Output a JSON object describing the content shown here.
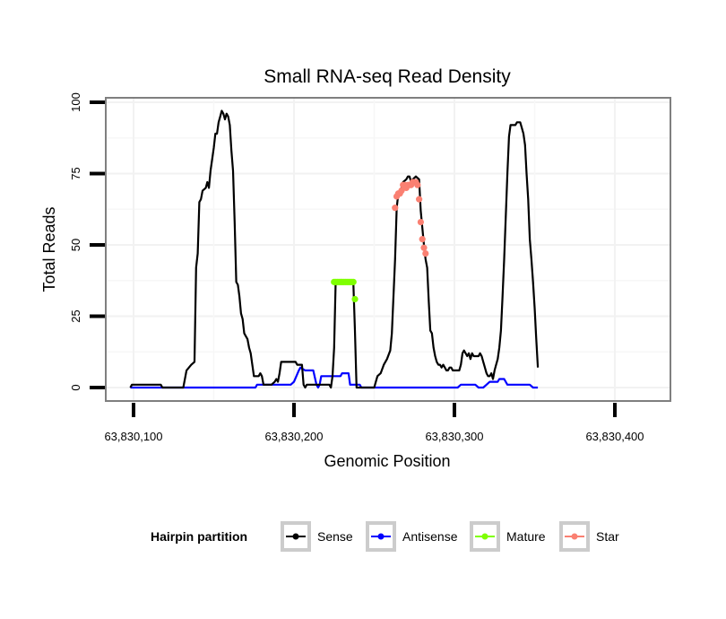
{
  "chart_data": {
    "type": "line",
    "title": "Small RNA-seq Read Density",
    "xlabel": "Genomic Position",
    "ylabel": "Total Reads",
    "x_offset_base": 63830000,
    "xlim": [
      63830082,
      63830435
    ],
    "ylim": [
      -5,
      105
    ],
    "x_ticks": [
      {
        "value": 63830100,
        "label": "63,830,100"
      },
      {
        "value": 63830200,
        "label": "63,830,200"
      },
      {
        "value": 63830300,
        "label": "63,830,300"
      },
      {
        "value": 63830400,
        "label": "63,830,400"
      }
    ],
    "y_ticks": [
      {
        "value": 0,
        "label": "0"
      },
      {
        "value": 25,
        "label": "25"
      },
      {
        "value": 50,
        "label": "50"
      },
      {
        "value": 75,
        "label": "75"
      },
      {
        "value": 100,
        "label": "100"
      }
    ],
    "grid": true,
    "legend": {
      "title": "Hairpin partition",
      "placement": "bottom"
    },
    "series": [
      {
        "name": "Sense",
        "color": "#000000",
        "kind": "line",
        "points": [
          [
            98,
            0
          ],
          [
            99,
            1
          ],
          [
            117,
            1
          ],
          [
            118,
            0
          ],
          [
            131,
            0
          ],
          [
            133,
            6
          ],
          [
            136,
            8
          ],
          [
            138,
            9
          ],
          [
            139,
            42
          ],
          [
            140,
            47
          ],
          [
            141,
            65
          ],
          [
            142,
            66
          ],
          [
            143,
            69
          ],
          [
            145,
            70
          ],
          [
            146,
            72
          ],
          [
            147,
            70
          ],
          [
            148,
            76
          ],
          [
            150,
            84
          ],
          [
            151,
            89
          ],
          [
            152,
            89
          ],
          [
            153,
            93
          ],
          [
            154,
            95
          ],
          [
            155,
            97
          ],
          [
            156,
            96
          ],
          [
            157,
            94
          ],
          [
            158,
            96
          ],
          [
            159,
            95
          ],
          [
            160,
            92
          ],
          [
            161,
            83
          ],
          [
            162,
            76
          ],
          [
            163,
            58
          ],
          [
            164,
            37
          ],
          [
            165,
            36
          ],
          [
            166,
            32
          ],
          [
            167,
            26
          ],
          [
            168,
            24
          ],
          [
            169,
            19
          ],
          [
            170,
            18
          ],
          [
            171,
            17
          ],
          [
            172,
            14
          ],
          [
            173,
            12
          ],
          [
            174,
            8
          ],
          [
            175,
            4
          ],
          [
            178,
            4
          ],
          [
            179,
            5
          ],
          [
            180,
            4
          ],
          [
            181,
            1
          ],
          [
            186,
            1
          ],
          [
            188,
            2
          ],
          [
            189,
            3
          ],
          [
            190,
            2
          ],
          [
            191,
            5
          ],
          [
            192,
            9
          ],
          [
            201,
            9
          ],
          [
            202,
            8
          ],
          [
            205,
            8
          ],
          [
            206,
            1
          ],
          [
            207,
            0
          ],
          [
            208,
            1
          ],
          [
            222,
            1
          ],
          [
            223,
            0
          ],
          [
            224,
            4
          ],
          [
            225,
            14
          ],
          [
            226,
            37
          ],
          [
            237,
            37
          ],
          [
            238,
            20
          ],
          [
            239,
            0
          ],
          [
            250,
            0
          ],
          [
            252,
            4
          ],
          [
            254,
            5
          ],
          [
            256,
            8
          ],
          [
            258,
            10
          ],
          [
            260,
            13
          ],
          [
            261,
            19
          ],
          [
            263,
            45
          ],
          [
            264,
            63
          ],
          [
            265,
            68
          ],
          [
            267,
            70
          ],
          [
            268,
            72
          ],
          [
            270,
            73
          ],
          [
            271,
            74
          ],
          [
            272,
            74
          ],
          [
            273,
            72
          ],
          [
            274,
            73
          ],
          [
            276,
            74
          ],
          [
            278,
            73
          ],
          [
            279,
            62
          ],
          [
            280,
            56
          ],
          [
            281,
            50
          ],
          [
            282,
            45
          ],
          [
            283,
            42
          ],
          [
            284,
            30
          ],
          [
            285,
            20
          ],
          [
            286,
            19
          ],
          [
            287,
            14
          ],
          [
            288,
            11
          ],
          [
            289,
            9
          ],
          [
            290,
            8
          ],
          [
            291,
            8
          ],
          [
            292,
            7
          ],
          [
            293,
            8
          ],
          [
            294,
            7
          ],
          [
            295,
            6
          ],
          [
            296,
            6
          ],
          [
            297,
            7
          ],
          [
            298,
            7
          ],
          [
            299,
            6
          ],
          [
            303,
            6
          ],
          [
            304,
            8
          ],
          [
            305,
            12
          ],
          [
            306,
            13
          ],
          [
            307,
            12
          ],
          [
            308,
            11
          ],
          [
            309,
            12
          ],
          [
            310,
            10
          ],
          [
            311,
            12
          ],
          [
            312,
            11
          ],
          [
            315,
            11
          ],
          [
            316,
            12
          ],
          [
            317,
            11
          ],
          [
            318,
            9
          ],
          [
            319,
            7
          ],
          [
            320,
            5
          ],
          [
            321,
            4
          ],
          [
            322,
            4
          ],
          [
            323,
            5
          ],
          [
            324,
            3
          ],
          [
            325,
            6
          ],
          [
            326,
            8
          ],
          [
            327,
            10
          ],
          [
            328,
            14
          ],
          [
            329,
            20
          ],
          [
            330,
            32
          ],
          [
            331,
            45
          ],
          [
            332,
            60
          ],
          [
            333,
            75
          ],
          [
            334,
            88
          ],
          [
            335,
            92
          ],
          [
            336,
            92
          ],
          [
            338,
            92
          ],
          [
            339,
            93
          ],
          [
            341,
            93
          ],
          [
            342,
            91
          ],
          [
            343,
            89
          ],
          [
            344,
            85
          ],
          [
            345,
            75
          ],
          [
            346,
            66
          ],
          [
            347,
            52
          ],
          [
            348,
            45
          ],
          [
            349,
            37
          ],
          [
            350,
            28
          ],
          [
            351,
            17
          ],
          [
            352,
            7
          ]
        ]
      },
      {
        "name": "Antisense",
        "color": "#0000ff",
        "kind": "line",
        "points": [
          [
            98,
            0
          ],
          [
            176,
            0
          ],
          [
            177,
            1
          ],
          [
            198,
            1
          ],
          [
            200,
            2
          ],
          [
            203,
            6
          ],
          [
            204,
            7
          ],
          [
            207,
            6
          ],
          [
            212,
            6
          ],
          [
            214,
            1
          ],
          [
            215,
            0
          ],
          [
            216,
            1
          ],
          [
            217,
            4
          ],
          [
            229,
            4
          ],
          [
            230,
            5
          ],
          [
            234,
            5
          ],
          [
            235,
            1
          ],
          [
            241,
            1
          ],
          [
            242,
            0
          ],
          [
            302,
            0
          ],
          [
            304,
            1
          ],
          [
            313,
            1
          ],
          [
            315,
            0
          ],
          [
            318,
            0
          ],
          [
            320,
            1
          ],
          [
            322,
            2
          ],
          [
            327,
            2
          ],
          [
            328,
            3
          ],
          [
            331,
            3
          ],
          [
            333,
            1
          ],
          [
            347,
            1
          ],
          [
            349,
            0
          ],
          [
            352,
            0
          ]
        ]
      },
      {
        "name": "Mature",
        "color": "#7fff00",
        "kind": "points",
        "points": [
          [
            225,
            37
          ],
          [
            226,
            37
          ],
          [
            227,
            37
          ],
          [
            228,
            37
          ],
          [
            229,
            37
          ],
          [
            230,
            37
          ],
          [
            231,
            37
          ],
          [
            232,
            37
          ],
          [
            233,
            37
          ],
          [
            234,
            37
          ],
          [
            235,
            37
          ],
          [
            236,
            37
          ],
          [
            237,
            37
          ],
          [
            238,
            31
          ]
        ]
      },
      {
        "name": "Star",
        "color": "#fa8072",
        "kind": "points",
        "points": [
          [
            263,
            63
          ],
          [
            264,
            67
          ],
          [
            265,
            68
          ],
          [
            266,
            68
          ],
          [
            267,
            69
          ],
          [
            268,
            71
          ],
          [
            269,
            71
          ],
          [
            270,
            70
          ],
          [
            271,
            71
          ],
          [
            272,
            71
          ],
          [
            273,
            71
          ],
          [
            274,
            72
          ],
          [
            275,
            72
          ],
          [
            276,
            72
          ],
          [
            277,
            71
          ],
          [
            278,
            66
          ],
          [
            279,
            58
          ],
          [
            280,
            52
          ],
          [
            281,
            49
          ],
          [
            282,
            47
          ]
        ]
      }
    ]
  }
}
